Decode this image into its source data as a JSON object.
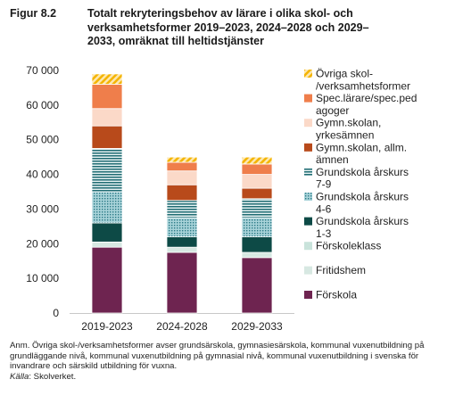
{
  "figure": {
    "label": "Figur 8.2",
    "title": "Totalt rekryteringsbehov av lärare i olika skol- och verksamhetsformer 2019–2023, 2024–2028 och 2029–2033, omräknat till heltidstjänster"
  },
  "note": {
    "text": "Anm. Övriga skol-/verksamhetsformer avser grundsärskola, gymnasiesärskola, kommunal vuxenutbildning på grundläggande nivå, kommunal vuxenutbildning på gymnasial nivå, kommunal vuxenutbildning i svenska för invandrare och särskild utbildning för vuxna.",
    "source_label": "Källa",
    "source_text": ": Skolverket."
  },
  "chart_data": {
    "type": "bar",
    "stacked": true,
    "categories": [
      "2019-2023",
      "2024-2028",
      "2029-2033"
    ],
    "ylim": [
      0,
      70000
    ],
    "yticks": [
      "0",
      "10 000",
      "20 000",
      "30 000",
      "40 000",
      "50 000",
      "60 000",
      "70 000"
    ],
    "ytick_values": [
      0,
      10000,
      20000,
      30000,
      40000,
      50000,
      60000,
      70000
    ],
    "xlabel": "",
    "ylabel": "",
    "grid": false,
    "legend_position": "right",
    "series": [
      {
        "name": "Förskola",
        "color": "#6e2450",
        "pattern": "solid",
        "values": [
          19000,
          17500,
          16000
        ]
      },
      {
        "name": "Fritidshem",
        "color": "#d7e8e2",
        "pattern": "solid",
        "values": [
          1500,
          1500,
          1500
        ]
      },
      {
        "name": "Förskoleklass",
        "color": "#c9e3db",
        "pattern": "solid",
        "values": [
          0,
          0,
          0
        ]
      },
      {
        "name": "Grundskola årskurs 1-3",
        "color": "#0d4a46",
        "pattern": "solid",
        "values": [
          5500,
          3000,
          4500
        ]
      },
      {
        "name": "Grundskola årskurs 4-6",
        "color": "#4e9aa6",
        "pattern": "dots",
        "values": [
          9000,
          5500,
          5500
        ]
      },
      {
        "name": "Grundskola årskurs 7-9",
        "color": "#1e6b72",
        "pattern": "hlines",
        "values": [
          12500,
          5000,
          5500
        ]
      },
      {
        "name": "Gymn.skolan, allm. ämnen",
        "color": "#b84a1b",
        "pattern": "solid",
        "values": [
          6500,
          4500,
          3000
        ]
      },
      {
        "name": "Gymn.skolan, yrkesämnen",
        "color": "#fbd9c8",
        "pattern": "solid",
        "values": [
          5000,
          4000,
          4000
        ]
      },
      {
        "name": "Spec.lärare/spec.pedagoger",
        "color": "#ef7e4b",
        "pattern": "solid",
        "values": [
          7000,
          2500,
          3000
        ]
      },
      {
        "name": "Övriga skol-/verksamhetsformer",
        "color": "#f4b400",
        "pattern": "diag",
        "values": [
          3000,
          1500,
          2000
        ]
      }
    ],
    "legend_order": [
      {
        "lines": [
          "Övriga skol-",
          "/verksamhetsformer"
        ]
      },
      {
        "lines": [
          "Spec.lärare/spec.ped",
          "agoger"
        ]
      },
      {
        "lines": [
          "Gymn.skolan,",
          "yrkesämnen"
        ]
      },
      {
        "lines": [
          "Gymn.skolan, allm.",
          "ämnen"
        ]
      },
      {
        "lines": [
          "Grundskola årskurs",
          "7-9"
        ]
      },
      {
        "lines": [
          "Grundskola årskurs",
          "4-6"
        ]
      },
      {
        "lines": [
          "Grundskola årskurs",
          "1-3"
        ]
      },
      {
        "lines": [
          "Förskoleklass"
        ]
      },
      {
        "lines": [
          "Fritidshem"
        ]
      },
      {
        "lines": [
          "Förskola"
        ]
      }
    ]
  }
}
